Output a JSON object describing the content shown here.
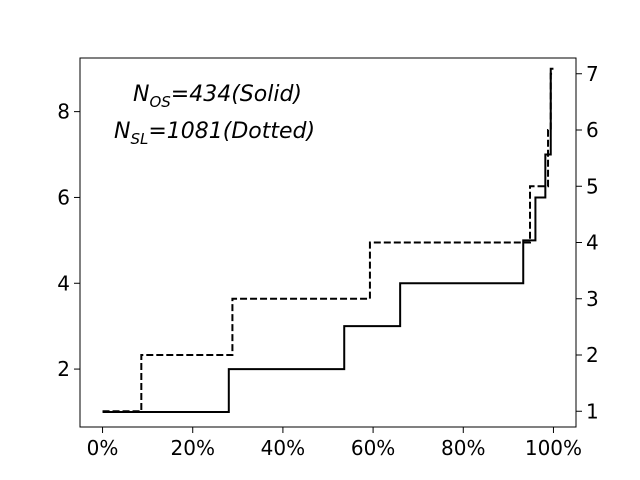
{
  "chart_data": {
    "type": "line",
    "title": "",
    "xlabel": "",
    "ylabel": "",
    "xlim": [
      -0.05,
      1.05
    ],
    "x_ticks": [
      0,
      0.2,
      0.4,
      0.6,
      0.8,
      1.0
    ],
    "x_tick_labels": [
      "0%",
      "20%",
      "40%",
      "60%",
      "80%",
      "100%"
    ],
    "y_left_lim": [
      0.65,
      9.25
    ],
    "y_left_ticks": [
      2,
      4,
      6,
      8
    ],
    "y_left_tick_labels": [
      "2",
      "4",
      "6",
      "8"
    ],
    "y_right_lim": [
      0.72,
      7.28
    ],
    "y_right_ticks": [
      1,
      2,
      3,
      4,
      5,
      6,
      7
    ],
    "y_right_tick_labels": [
      "1",
      "2",
      "3",
      "4",
      "5",
      "6",
      "7"
    ],
    "grid": false,
    "legend": "none",
    "series": [
      {
        "style": "solid",
        "axis": "left",
        "color": "#000000",
        "x": [
          0.0,
          0.28,
          0.28,
          0.536,
          0.536,
          0.66,
          0.66,
          0.933,
          0.933,
          0.96,
          0.96,
          0.982,
          0.982,
          0.994,
          0.994,
          1.0
        ],
        "y": [
          1,
          1,
          2,
          2,
          3,
          3,
          4,
          4,
          5,
          5,
          6,
          6,
          7,
          7,
          9,
          9
        ]
      },
      {
        "style": "dashed",
        "axis": "right",
        "color": "#000000",
        "x": [
          0.0,
          0.086,
          0.086,
          0.288,
          0.288,
          0.593,
          0.593,
          0.948,
          0.948,
          0.988,
          0.988,
          0.994,
          0.994,
          1.0
        ],
        "y": [
          1,
          1,
          2,
          2,
          3,
          3,
          4,
          4,
          5,
          5,
          6,
          6,
          7,
          7
        ]
      }
    ],
    "annotations": [
      {
        "base": "N",
        "sub": "OS",
        "rest": "=434(Solid)"
      },
      {
        "base": "N",
        "sub": "SL",
        "rest": "=1081(Dotted)"
      }
    ]
  }
}
